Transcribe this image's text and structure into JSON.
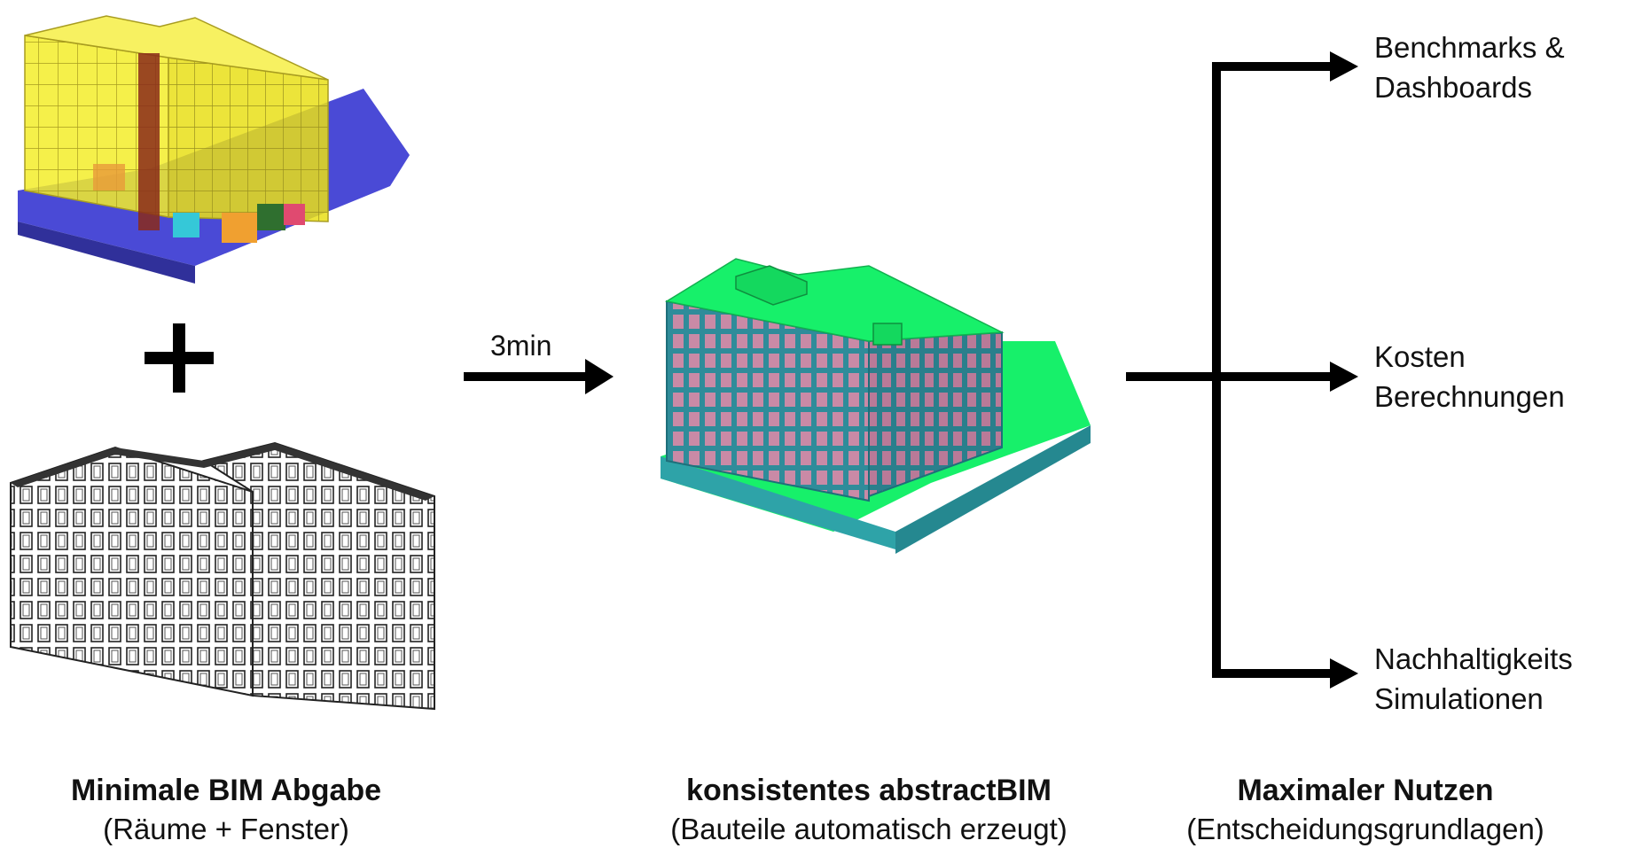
{
  "arrow_label": "3min",
  "captions": {
    "input": {
      "title": "Minimale BIM Abgabe",
      "subtitle": "(Räume + Fenster)"
    },
    "model": {
      "title": "konsistentes abstractBIM",
      "subtitle": "(Bauteile automatisch erzeugt)"
    },
    "result": {
      "title": "Maximaler Nutzen",
      "subtitle": "(Entscheidungsgrundlagen)"
    }
  },
  "outputs": [
    {
      "line1": "Benchmarks &",
      "line2": "Dashboards"
    },
    {
      "line1": "Kosten",
      "line2": "Berechnungen"
    },
    {
      "line1": "Nachhaltigkeits",
      "line2": "Simulationen"
    }
  ],
  "colors": {
    "rooms_yellow": "#f2ec22",
    "rooms_blue": "#4a4ad6",
    "model_green": "#17f06a",
    "model_teal": "#2ea3a8",
    "model_pink": "#cc88aa",
    "arrow": "#000000"
  }
}
